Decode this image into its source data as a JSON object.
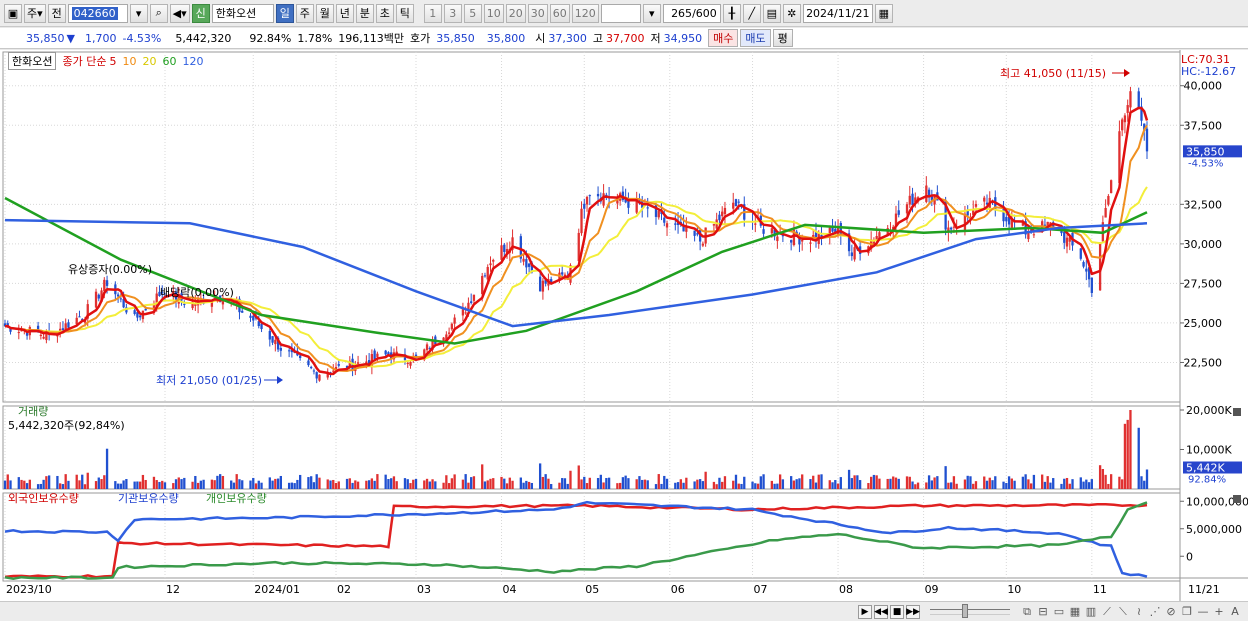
{
  "toolbar": {
    "type_label": "주",
    "prev_label": "전",
    "stock_code": "042660",
    "shin_label": "신",
    "stock_name": "한화오션",
    "periods": [
      "일",
      "주",
      "월",
      "년",
      "분",
      "초",
      "틱"
    ],
    "intervals": [
      "1",
      "3",
      "5",
      "10",
      "20",
      "30",
      "60",
      "120"
    ],
    "bar_count": "265",
    "bar_total": "/600",
    "date": "2024/11/21"
  },
  "info": {
    "price": "35,850",
    "change": "1,700",
    "change_pct": "-4.53%",
    "volume": "5,442,320",
    "volume_ratio": "92.84%",
    "turnover": "1.78%",
    "amount": "196,113백만",
    "ask_label": "호가",
    "ask1": "35,850",
    "ask2": "35,800",
    "open_label": "시",
    "open": "37,300",
    "high_label": "고",
    "high": "37,700",
    "low_label": "저",
    "low": "34,950",
    "buy_label": "매수",
    "sell_label": "매도",
    "eval_label": "평"
  },
  "legend": {
    "stock": "한화오션",
    "ma_label": "종가 단순",
    "ma_periods": [
      "5",
      "10",
      "20",
      "60",
      "120"
    ]
  },
  "colors": {
    "up": "#e03030",
    "down": "#2050d0",
    "ma5": "#e01010",
    "ma10": "#f09020",
    "ma20": "#f3ee3a",
    "ma60": "#20a020",
    "ma120": "#3060e0",
    "foreign": "#e02020",
    "institution": "#3060e0",
    "individual": "#3a9a4a"
  },
  "chart_data": [
    {
      "type": "candlestick",
      "lc_label": "LC:70.31",
      "hc_label": "HC:-12.67",
      "y_ticks": [
        "40,000",
        "37,500",
        "32,500",
        "30,000",
        "27,500",
        "25,000",
        "22,500"
      ],
      "ylim": [
        20000,
        41500
      ],
      "current_price": "35,850",
      "current_change": "-4.53%",
      "annotations": [
        {
          "text": "최고 41,050 (11/15)"
        },
        {
          "text": "최저 21,050 (01/25)"
        },
        {
          "text": "유상증자(0.00%)"
        },
        {
          "text": "배당락(0.00%)"
        }
      ],
      "price_path": [
        [
          "2023-10-04",
          24800
        ],
        [
          "2023-10-20",
          24200
        ],
        [
          "2023-11-02",
          25600
        ],
        [
          "2023-11-10",
          27600
        ],
        [
          "2023-11-20",
          25200
        ],
        [
          "2023-11-30",
          27000
        ],
        [
          "2023-12-10",
          26200
        ],
        [
          "2023-12-20",
          26800
        ],
        [
          "2024-01-02",
          25200
        ],
        [
          "2024-01-12",
          23400
        ],
        [
          "2024-01-25",
          21800
        ],
        [
          "2024-02-06",
          22300
        ],
        [
          "2024-02-20",
          23000
        ],
        [
          "2024-03-01",
          22700
        ],
        [
          "2024-03-08",
          23900
        ],
        [
          "2024-03-18",
          25600
        ],
        [
          "2024-03-28",
          29000
        ],
        [
          "2024-04-05",
          30300
        ],
        [
          "2024-04-15",
          27400
        ],
        [
          "2024-04-25",
          28000
        ],
        [
          "2024-05-02",
          33400
        ],
        [
          "2024-05-10",
          33000
        ],
        [
          "2024-05-20",
          32500
        ],
        [
          "2024-06-01",
          31200
        ],
        [
          "2024-06-12",
          30200
        ],
        [
          "2024-06-24",
          32600
        ],
        [
          "2024-07-04",
          31000
        ],
        [
          "2024-07-20",
          30300
        ],
        [
          "2024-08-02",
          30800
        ],
        [
          "2024-08-06",
          29300
        ],
        [
          "2024-08-20",
          31300
        ],
        [
          "2024-09-02",
          33800
        ],
        [
          "2024-09-10",
          31000
        ],
        [
          "2024-09-24",
          32600
        ],
        [
          "2024-10-08",
          30800
        ],
        [
          "2024-10-18",
          31200
        ],
        [
          "2024-10-28",
          29200
        ],
        [
          "2024-11-01",
          27200
        ],
        [
          "2024-11-07",
          33000
        ],
        [
          "2024-11-12",
          38000
        ],
        [
          "2024-11-15",
          39800
        ],
        [
          "2024-11-19",
          37500
        ],
        [
          "2024-11-21",
          35850
        ]
      ],
      "ma120_path": [
        [
          "2023-10-04",
          31500
        ],
        [
          "2023-12-10",
          31300
        ],
        [
          "2024-01-20",
          29800
        ],
        [
          "2024-03-01",
          27000
        ],
        [
          "2024-04-05",
          24800
        ],
        [
          "2024-05-10",
          25500
        ],
        [
          "2024-07-01",
          26800
        ],
        [
          "2024-08-15",
          28200
        ],
        [
          "2024-09-20",
          30300
        ],
        [
          "2024-10-20",
          31000
        ],
        [
          "2024-11-21",
          31300
        ]
      ],
      "ma60_path": [
        [
          "2023-10-04",
          32900
        ],
        [
          "2023-11-15",
          29000
        ],
        [
          "2024-01-05",
          25500
        ],
        [
          "2024-02-15",
          24400
        ],
        [
          "2024-03-15",
          23700
        ],
        [
          "2024-04-10",
          24500
        ],
        [
          "2024-05-20",
          27000
        ],
        [
          "2024-06-20",
          29500
        ],
        [
          "2024-07-20",
          31200
        ],
        [
          "2024-09-01",
          30700
        ],
        [
          "2024-10-10",
          31000
        ],
        [
          "2024-11-05",
          30700
        ],
        [
          "2024-11-21",
          32000
        ]
      ]
    },
    {
      "type": "bar",
      "title": "거래량",
      "value_label": "5,442,320주(92,84%)",
      "y_ticks": [
        "20,000K",
        "10,000K"
      ],
      "current_volume": "5,442K",
      "current_ratio": "92.84%",
      "ylim": [
        0,
        20000
      ],
      "spikes": [
        [
          "2023-11-10",
          10200
        ],
        [
          "2024-11-13",
          16500
        ],
        [
          "2024-11-14",
          17500
        ],
        [
          "2024-11-15",
          20000
        ],
        [
          "2024-11-18",
          15500
        ]
      ]
    },
    {
      "type": "line",
      "title_foreign": "외국인보유수량",
      "title_institution": "기관보유수량",
      "title_individual": "개인보유수량",
      "y_ticks": [
        "10,000,000",
        "5,000,000",
        "0"
      ],
      "series": [
        {
          "name": "외국인보유수량",
          "points": [
            [
              "2023-10-04",
              -3700000
            ],
            [
              "2023-11-12",
              -3600000
            ],
            [
              "2023-11-14",
              2400000
            ],
            [
              "2024-02-20",
              1800000
            ],
            [
              "2024-02-22",
              9000000
            ],
            [
              "2024-05-01",
              9200000
            ],
            [
              "2024-07-01",
              8500000
            ],
            [
              "2024-09-01",
              9200000
            ],
            [
              "2024-11-21",
              9300000
            ]
          ]
        },
        {
          "name": "기관보유수량",
          "points": [
            [
              "2023-10-04",
              4600000
            ],
            [
              "2023-11-10",
              4400000
            ],
            [
              "2023-11-14",
              3000000
            ],
            [
              "2023-11-20",
              6700000
            ],
            [
              "2024-01-10",
              7000000
            ],
            [
              "2024-03-10",
              7800000
            ],
            [
              "2024-04-20",
              8500000
            ],
            [
              "2024-05-02",
              9700000
            ],
            [
              "2024-07-01",
              8500000
            ],
            [
              "2024-08-20",
              4200000
            ],
            [
              "2024-09-10",
              5200000
            ],
            [
              "2024-10-20",
              4200000
            ],
            [
              "2024-11-08",
              1800000
            ],
            [
              "2024-11-12",
              -3000000
            ],
            [
              "2024-11-21",
              -3700000
            ]
          ]
        },
        {
          "name": "개인보유수량",
          "points": [
            [
              "2023-10-04",
              -3900000
            ],
            [
              "2023-11-12",
              -3900000
            ],
            [
              "2023-11-14",
              -2000000
            ],
            [
              "2024-01-10",
              -1200000
            ],
            [
              "2024-03-10",
              -1500000
            ],
            [
              "2024-04-20",
              -2800000
            ],
            [
              "2024-05-20",
              -1800000
            ],
            [
              "2024-07-10",
              3000000
            ],
            [
              "2024-08-01",
              4000000
            ],
            [
              "2024-09-01",
              1500000
            ],
            [
              "2024-10-20",
              2000000
            ],
            [
              "2024-11-08",
              3500000
            ],
            [
              "2024-11-14",
              8500000
            ],
            [
              "2024-11-21",
              9800000
            ]
          ]
        }
      ]
    }
  ],
  "x_axis": {
    "labels": [
      {
        "text": "2023/10",
        "date": "2023-10-04"
      },
      {
        "text": "12",
        "date": "2023-12-01"
      },
      {
        "text": "2024/01",
        "date": "2024-01-02"
      },
      {
        "text": "02",
        "date": "2024-02-01"
      },
      {
        "text": "03",
        "date": "2024-03-01"
      },
      {
        "text": "04",
        "date": "2024-04-01"
      },
      {
        "text": "05",
        "date": "2024-05-01"
      },
      {
        "text": "06",
        "date": "2024-06-01"
      },
      {
        "text": "07",
        "date": "2024-07-01"
      },
      {
        "text": "08",
        "date": "2024-08-01"
      },
      {
        "text": "09",
        "date": "2024-09-01"
      },
      {
        "text": "10",
        "date": "2024-10-01"
      },
      {
        "text": "11",
        "date": "2024-11-01"
      }
    ],
    "last_date": "11/21"
  }
}
